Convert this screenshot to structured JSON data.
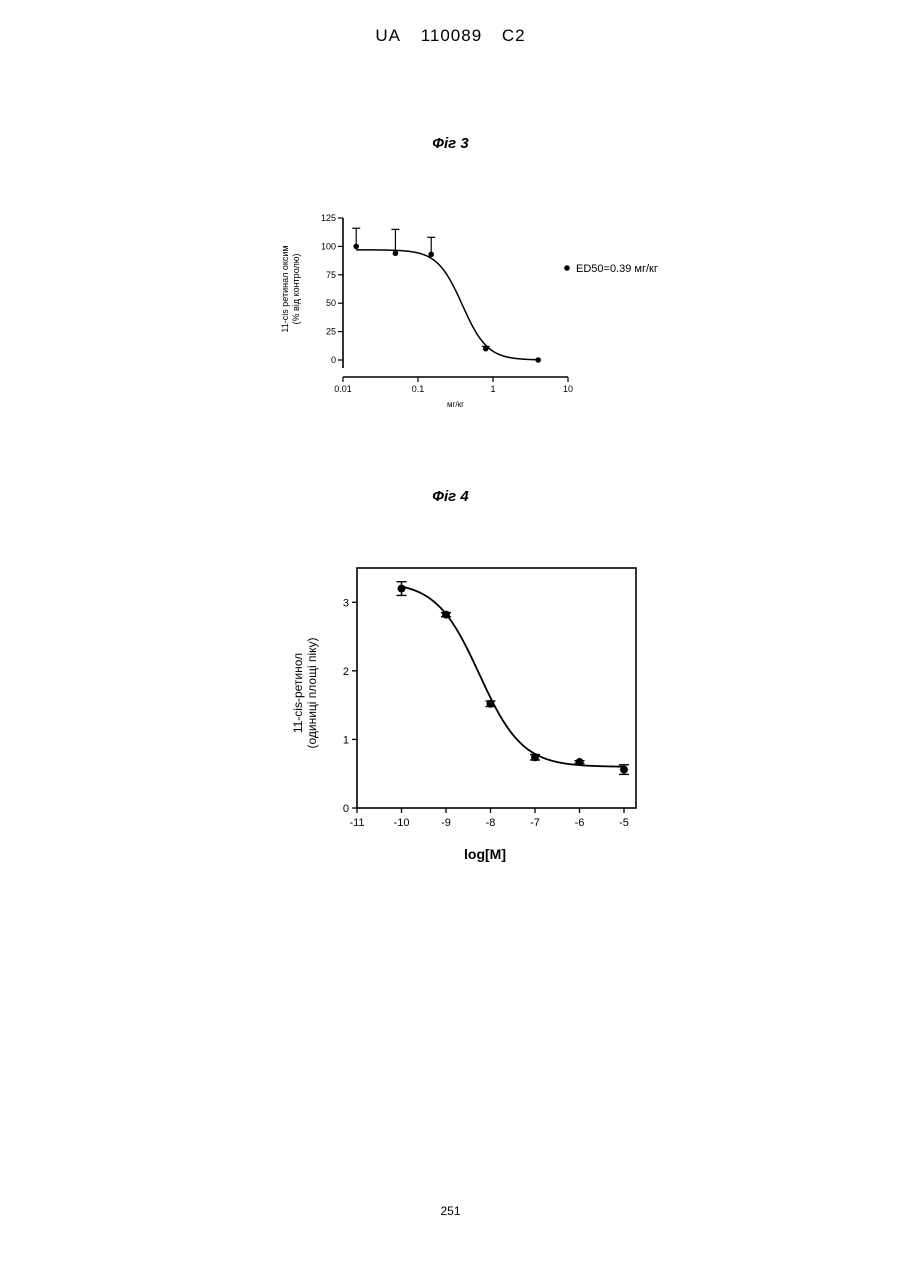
{
  "header": {
    "country": "UA",
    "number": "110089",
    "kind": "C2"
  },
  "page_number": "251",
  "chart_data": [
    {
      "figure_label": "Фіг 3",
      "type": "scatter",
      "xscale": "log",
      "xlabel": "мг/кг",
      "ylabel_line1": "11-cis ретинал оксим",
      "ylabel_line2": "(% від контролю)",
      "xlim": [
        0.01,
        10
      ],
      "ylim": [
        0,
        125
      ],
      "xticks": [
        0.01,
        0.1,
        1,
        10
      ],
      "xtick_labels": [
        "0.01",
        "0.1",
        "1",
        "10"
      ],
      "yticks": [
        0,
        25,
        50,
        75,
        100,
        125
      ],
      "ytick_labels": [
        "0",
        "25",
        "50",
        "75",
        "100",
        "125"
      ],
      "series": [
        {
          "name": "ED50=0.39 мг/кг",
          "marker": "circle",
          "x": [
            0.015,
            0.05,
            0.15,
            0.8,
            4
          ],
          "y": [
            100,
            94,
            93,
            10,
            0
          ],
          "error_plus": [
            16,
            21,
            15,
            2,
            0
          ]
        }
      ],
      "fit_curve": {
        "model": "sigmoid",
        "top": 97,
        "bottom": 0,
        "ed50": 0.39,
        "hill": 2.6
      },
      "legend_position": "right",
      "grid": false
    },
    {
      "figure_label": "Фіг 4",
      "type": "scatter",
      "xlabel": "log[M]",
      "ylabel_line1": "11-cis-ретинол",
      "ylabel_line2": "(одиниці площі піку)",
      "xlim": [
        -11,
        -5
      ],
      "ylim": [
        0,
        3.5
      ],
      "xticks": [
        -11,
        -10,
        -9,
        -8,
        -7,
        -6,
        -5
      ],
      "xtick_labels": [
        "-11",
        "-10",
        "-9",
        "-8",
        "-7",
        "-6",
        "-5"
      ],
      "yticks": [
        0,
        1,
        2,
        3
      ],
      "ytick_labels": [
        "0",
        "1",
        "2",
        "3"
      ],
      "series": [
        {
          "marker": "circle",
          "x": [
            -10,
            -9,
            -8,
            -7,
            -6,
            -5
          ],
          "y": [
            3.2,
            2.82,
            1.52,
            0.74,
            0.67,
            0.56
          ],
          "error": [
            0.1,
            0.03,
            0.04,
            0.04,
            0.02,
            0.07
          ]
        }
      ],
      "fit_curve": {
        "model": "sigmoid",
        "top": 3.3,
        "bottom": 0.6,
        "logec50": -8.25,
        "hill": 0.9
      },
      "grid": false,
      "boxed": true
    }
  ]
}
